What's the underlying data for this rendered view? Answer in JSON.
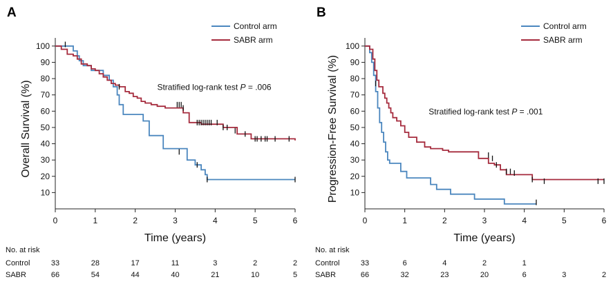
{
  "chart_data": [
    {
      "type": "line",
      "panel": "A",
      "xlabel": "Time (years)",
      "ylabel": "Overall Survival (%)",
      "xlim": [
        0,
        6
      ],
      "ylim": [
        0,
        105
      ],
      "xticks": [
        0,
        1,
        2,
        3,
        4,
        5,
        6
      ],
      "yticks": [
        10,
        20,
        30,
        40,
        50,
        60,
        70,
        80,
        90,
        100
      ],
      "grid": false,
      "legend": "top-right",
      "annotation": {
        "text": "Stratified log-rank test ",
        "p_label": "P",
        "p_value": " = .006",
        "x": 2.55,
        "y": 73
      },
      "series": [
        {
          "name": "Control arm",
          "color": "#4a86be",
          "x": [
            0,
            0.25,
            0.45,
            0.55,
            0.6,
            0.7,
            0.8,
            0.9,
            1.1,
            1.2,
            1.35,
            1.45,
            1.55,
            1.6,
            1.7,
            1.95,
            2.2,
            2.35,
            2.7,
            3.05,
            3.3,
            3.5,
            3.65,
            3.75,
            3.8,
            6
          ],
          "y": [
            100,
            100,
            97,
            94,
            91,
            88,
            88,
            85,
            85,
            82,
            79,
            75,
            70,
            64,
            58,
            58,
            54,
            45,
            37,
            37,
            30,
            27,
            24,
            21,
            18,
            18
          ],
          "censor": [
            [
              3.1,
              35
            ],
            [
              3.55,
              27
            ],
            [
              3.8,
              18
            ],
            [
              6,
              18
            ]
          ]
        },
        {
          "name": "SABR arm",
          "color": "#a52a3c",
          "x": [
            0,
            0.15,
            0.3,
            0.45,
            0.55,
            0.65,
            0.8,
            0.9,
            1.0,
            1.1,
            1.2,
            1.3,
            1.4,
            1.5,
            1.6,
            1.75,
            1.85,
            1.95,
            2.05,
            2.15,
            2.25,
            2.4,
            2.55,
            2.75,
            3.05,
            3.2,
            3.35,
            3.65,
            4.2,
            4.55,
            4.9,
            6
          ],
          "y": [
            100,
            98,
            95,
            94,
            92,
            89,
            88,
            86,
            85,
            83,
            81,
            79,
            77,
            76,
            75,
            72,
            71,
            69,
            68,
            66,
            65,
            64,
            63,
            62,
            62,
            59,
            53,
            52,
            50,
            46,
            43,
            42
          ],
          "censor": [
            [
              0.25,
              101
            ],
            [
              1.6,
              75
            ],
            [
              3.05,
              64
            ],
            [
              3.1,
              64
            ],
            [
              3.15,
              64
            ],
            [
              3.2,
              62
            ],
            [
              3.55,
              53
            ],
            [
              3.6,
              53
            ],
            [
              3.65,
              53
            ],
            [
              3.7,
              53
            ],
            [
              3.75,
              53
            ],
            [
              3.8,
              53
            ],
            [
              3.85,
              53
            ],
            [
              3.9,
              53
            ],
            [
              4.05,
              53
            ],
            [
              4.2,
              50
            ],
            [
              4.3,
              50
            ],
            [
              4.5,
              48
            ],
            [
              4.75,
              46
            ],
            [
              5.0,
              43
            ],
            [
              5.05,
              43
            ],
            [
              5.15,
              43
            ],
            [
              5.25,
              43
            ],
            [
              5.3,
              43
            ],
            [
              5.5,
              43
            ],
            [
              5.85,
              43
            ]
          ]
        }
      ],
      "risk_table": {
        "heading": "No. at risk",
        "times": [
          0,
          1,
          2,
          3,
          4,
          5,
          6
        ],
        "rows": [
          {
            "label": "Control",
            "values": [
              "33",
              "28",
              "17",
              "11",
              "3",
              "2",
              "2"
            ]
          },
          {
            "label": "SABR",
            "values": [
              "66",
              "54",
              "44",
              "40",
              "21",
              "10",
              "5"
            ]
          }
        ]
      }
    },
    {
      "type": "line",
      "panel": "B",
      "xlabel": "Time (years)",
      "ylabel": "Progression-Free Survival (%)",
      "xlim": [
        0,
        6
      ],
      "ylim": [
        0,
        105
      ],
      "xticks": [
        0,
        1,
        2,
        3,
        4,
        5,
        6
      ],
      "yticks": [
        10,
        20,
        30,
        40,
        50,
        60,
        70,
        80,
        90,
        100
      ],
      "grid": false,
      "legend": "top-right",
      "annotation": {
        "text": "Stratified log-rank test ",
        "p_label": "P",
        "p_value": " = .001",
        "x": 1.6,
        "y": 58
      },
      "series": [
        {
          "name": "Control arm",
          "color": "#4a86be",
          "x": [
            0,
            0.12,
            0.17,
            0.22,
            0.27,
            0.32,
            0.37,
            0.42,
            0.47,
            0.52,
            0.57,
            0.62,
            0.9,
            1.05,
            1.65,
            1.8,
            2.15,
            2.75,
            3.5,
            4.15,
            4.3
          ],
          "y": [
            100,
            96,
            90,
            82,
            72,
            62,
            53,
            47,
            41,
            35,
            30,
            28,
            23,
            19,
            15,
            12,
            9,
            6,
            3,
            3,
            3
          ],
          "censor": [
            [
              4.3,
              4
            ]
          ]
        },
        {
          "name": "SABR arm",
          "color": "#a52a3c",
          "x": [
            0,
            0.12,
            0.2,
            0.25,
            0.3,
            0.35,
            0.45,
            0.5,
            0.55,
            0.6,
            0.65,
            0.7,
            0.8,
            0.9,
            1.0,
            1.1,
            1.3,
            1.5,
            1.65,
            1.95,
            2.1,
            2.85,
            3.1,
            3.25,
            3.4,
            3.55,
            4.2,
            6
          ],
          "y": [
            100,
            98,
            92,
            85,
            79,
            75,
            71,
            68,
            65,
            62,
            59,
            56,
            54,
            51,
            47,
            44,
            41,
            38,
            37,
            36,
            35,
            31,
            28,
            27,
            24,
            21,
            18,
            18
          ],
          "censor": [
            [
              0.27,
              77
            ],
            [
              3.1,
              33
            ],
            [
              3.2,
              31
            ],
            [
              3.3,
              27
            ],
            [
              3.55,
              23
            ],
            [
              3.65,
              23
            ],
            [
              3.75,
              22
            ],
            [
              4.2,
              18
            ],
            [
              4.5,
              17
            ],
            [
              5.85,
              17
            ],
            [
              6,
              17
            ]
          ]
        }
      ],
      "risk_table": {
        "heading": "No. at risk",
        "times": [
          0,
          1,
          2,
          3,
          4,
          5,
          6
        ],
        "rows": [
          {
            "label": "Control",
            "values": [
              "33",
              "6",
              "4",
              "2",
              "1",
              "",
              ""
            ]
          },
          {
            "label": "SABR",
            "values": [
              "66",
              "32",
              "23",
              "20",
              "6",
              "3",
              "2"
            ]
          }
        ]
      }
    }
  ]
}
